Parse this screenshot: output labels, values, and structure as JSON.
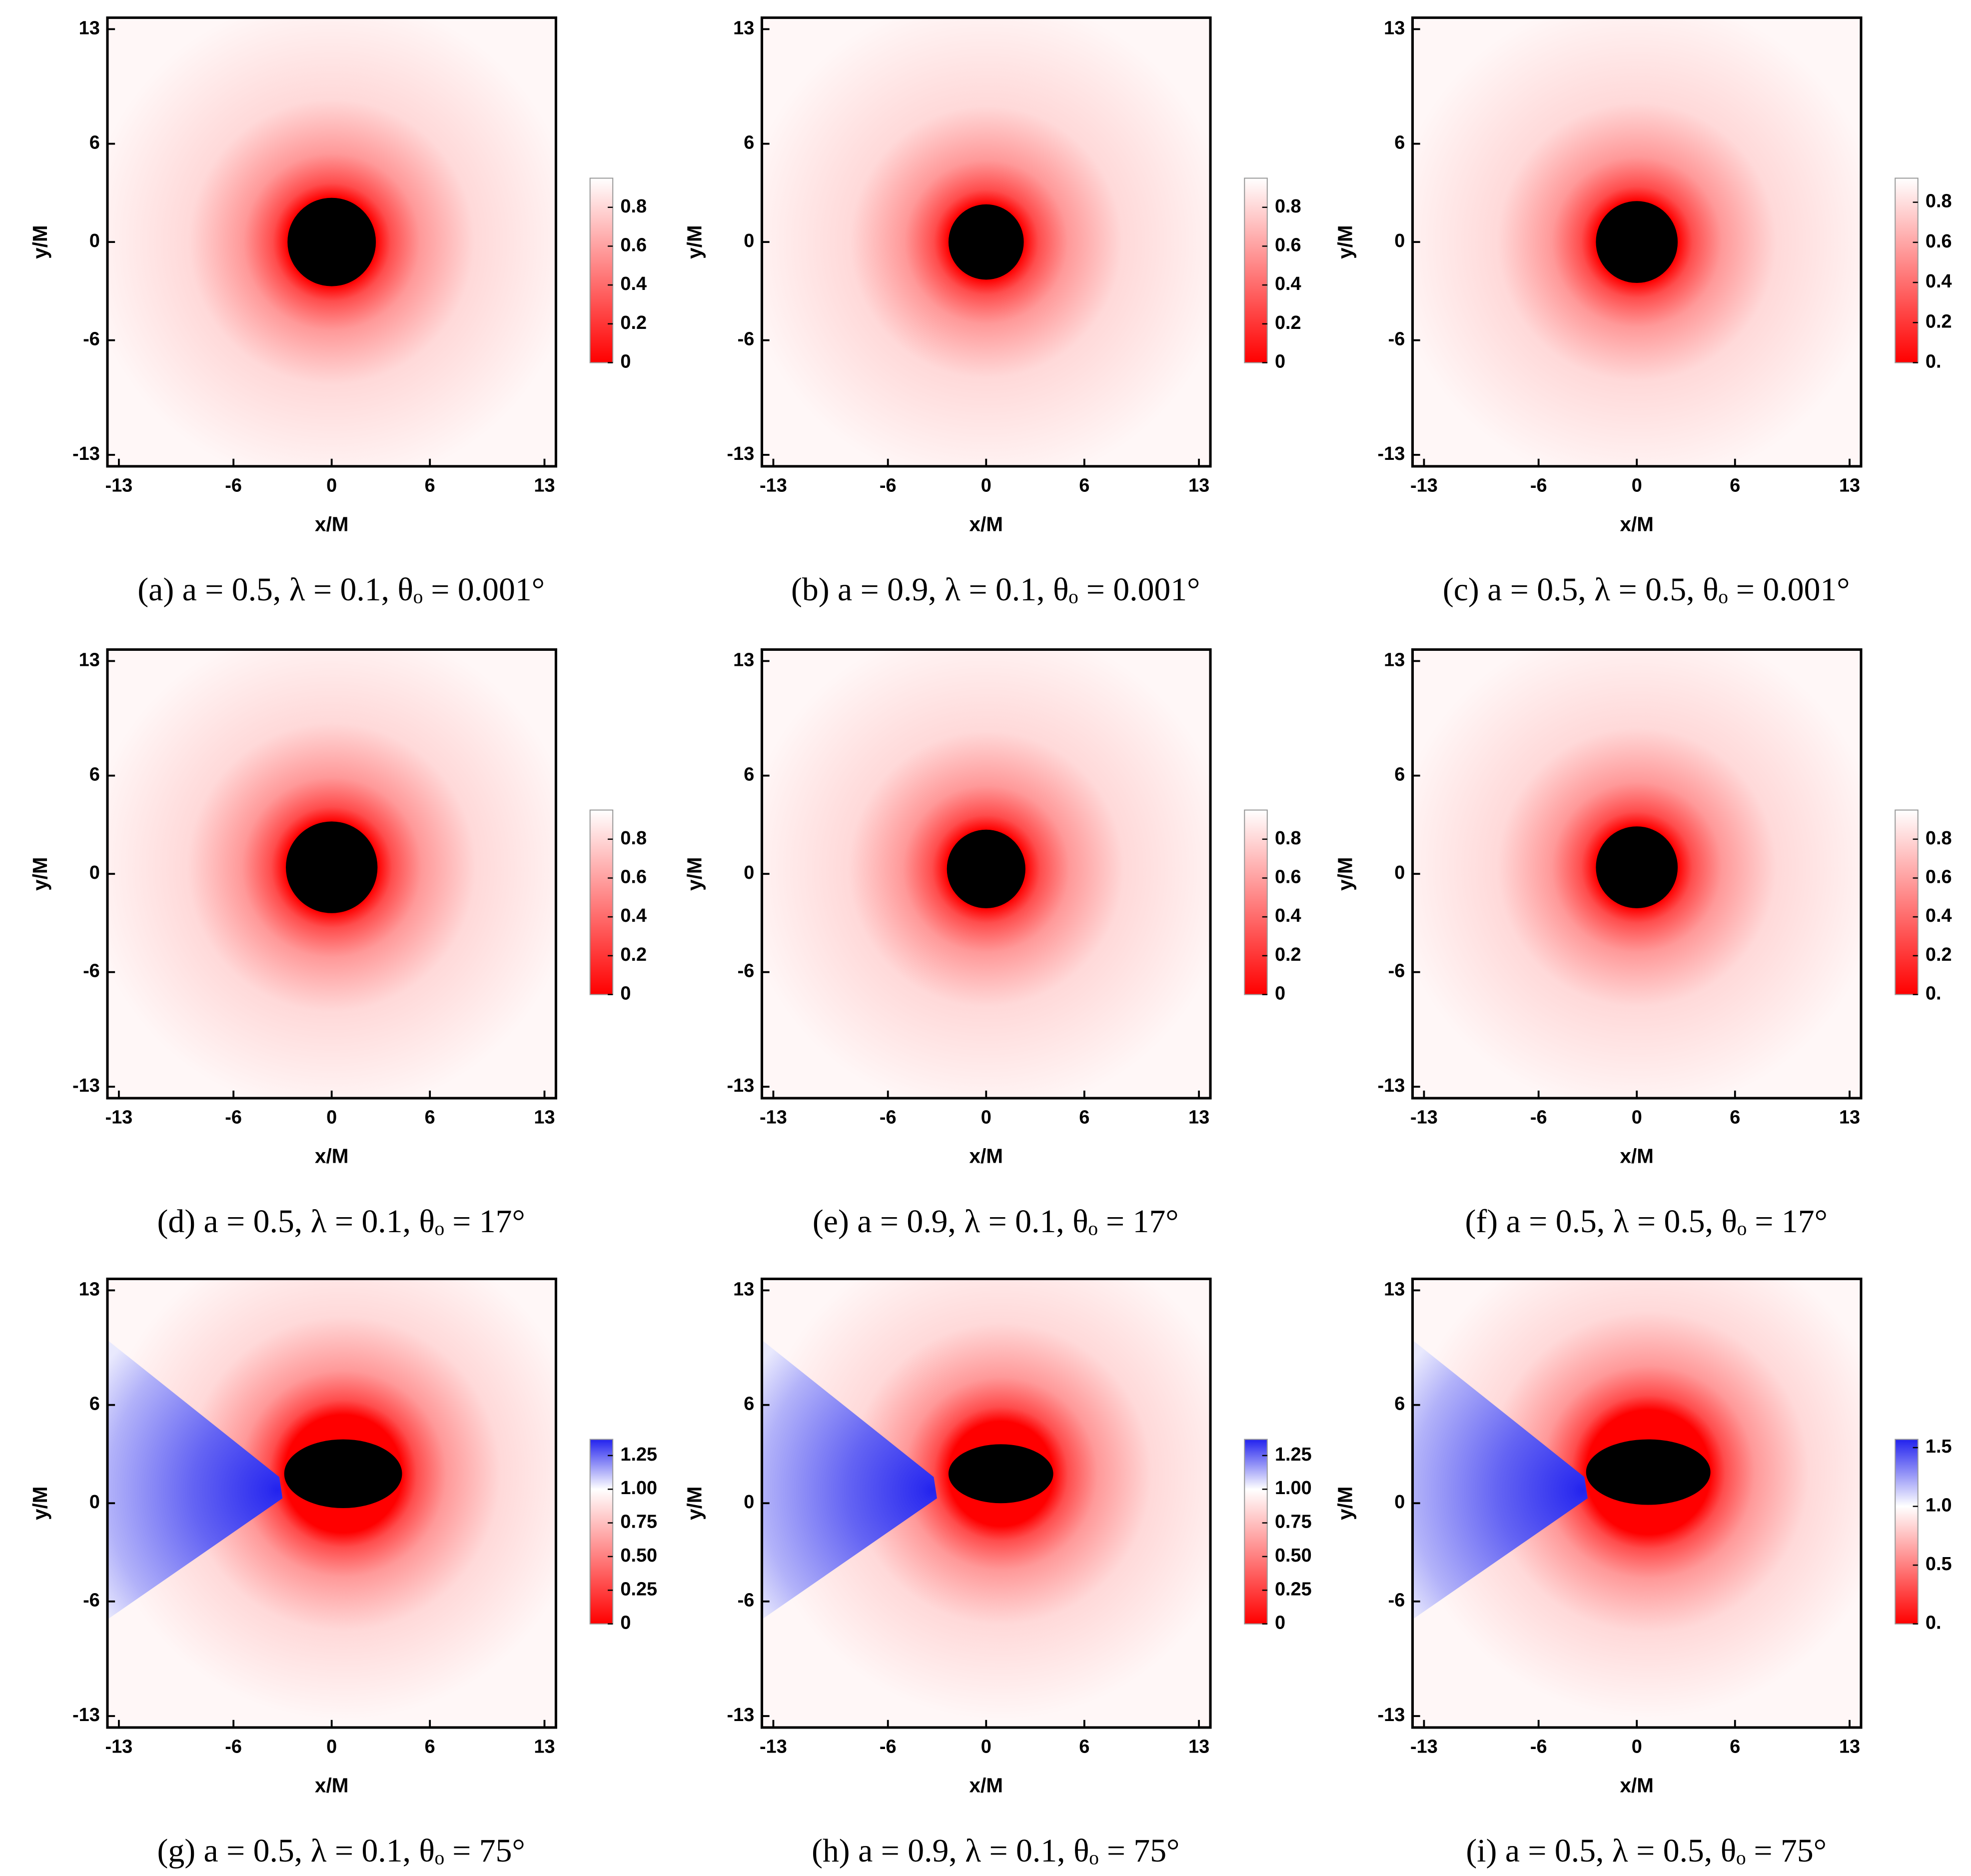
{
  "chart_data": [
    {
      "type": "heatmap",
      "caption": "(a) a = 0.5, λ = 0.1, θₒ = 0.001°",
      "xlabel": "x/M",
      "ylabel": "y/M",
      "xlim": [
        -13.7,
        13.7
      ],
      "ylim": [
        -13.7,
        13.7
      ],
      "xticks": [
        -13,
        -6,
        0,
        6,
        13
      ],
      "yticks": [
        -13,
        -6,
        0,
        6,
        13
      ],
      "colorbar": {
        "lim": [
          0,
          0.95
        ],
        "ticks": [
          0,
          0.2,
          0.4,
          0.6,
          0.8
        ],
        "stops": [
          {
            "value": 0,
            "color": "#ff0000"
          },
          {
            "value": 0.95,
            "color": "#ffffff"
          }
        ]
      }
    },
    {
      "type": "heatmap",
      "caption": "(b) a = 0.9, λ = 0.1, θₒ = 0.001°",
      "xlabel": "x/M",
      "ylabel": "y/M",
      "xlim": [
        -13.7,
        13.7
      ],
      "ylim": [
        -13.7,
        13.7
      ],
      "xticks": [
        -13,
        -6,
        0,
        6,
        13
      ],
      "yticks": [
        -13,
        -6,
        0,
        6,
        13
      ],
      "colorbar": {
        "lim": [
          0,
          0.95
        ],
        "ticks": [
          0,
          0.2,
          0.4,
          0.6,
          0.8
        ],
        "stops": [
          {
            "value": 0,
            "color": "#ff0000"
          },
          {
            "value": 0.95,
            "color": "#ffffff"
          }
        ]
      }
    },
    {
      "type": "heatmap",
      "caption": "(c) a = 0.5, λ = 0.5, θₒ = 0.001°",
      "xlabel": "x/M",
      "ylabel": "y/M",
      "xlim": [
        -13.7,
        13.7
      ],
      "ylim": [
        -13.7,
        13.7
      ],
      "xticks": [
        -13,
        -6,
        0,
        6,
        13
      ],
      "yticks": [
        -13,
        -6,
        0,
        6,
        13
      ],
      "colorbar": {
        "lim": [
          0,
          0.92
        ],
        "ticks": [
          {
            "value": 0,
            "label": "0."
          },
          0.2,
          0.4,
          0.6,
          0.8
        ],
        "stops": [
          {
            "value": 0,
            "color": "#ff0000"
          },
          {
            "value": 0.92,
            "color": "#ffffff"
          }
        ]
      }
    },
    {
      "type": "heatmap",
      "caption": "(d) a = 0.5, λ = 0.1, θₒ = 17°",
      "xlabel": "x/M",
      "ylabel": "y/M",
      "xlim": [
        -13.7,
        13.7
      ],
      "ylim": [
        -13.7,
        13.7
      ],
      "xticks": [
        -13,
        -6,
        0,
        6,
        13
      ],
      "yticks": [
        -13,
        -6,
        0,
        6,
        13
      ],
      "colorbar": {
        "lim": [
          0,
          0.95
        ],
        "ticks": [
          0,
          0.2,
          0.4,
          0.6,
          0.8
        ],
        "stops": [
          {
            "value": 0,
            "color": "#ff0000"
          },
          {
            "value": 0.95,
            "color": "#ffffff"
          }
        ]
      }
    },
    {
      "type": "heatmap",
      "caption": "(e) a = 0.9, λ = 0.1, θₒ = 17°",
      "xlabel": "x/M",
      "ylabel": "y/M",
      "xlim": [
        -13.7,
        13.7
      ],
      "ylim": [
        -13.7,
        13.7
      ],
      "xticks": [
        -13,
        -6,
        0,
        6,
        13
      ],
      "yticks": [
        -13,
        -6,
        0,
        6,
        13
      ],
      "colorbar": {
        "lim": [
          0,
          0.95
        ],
        "ticks": [
          0,
          0.2,
          0.4,
          0.6,
          0.8
        ],
        "stops": [
          {
            "value": 0,
            "color": "#ff0000"
          },
          {
            "value": 0.95,
            "color": "#ffffff"
          }
        ]
      }
    },
    {
      "type": "heatmap",
      "caption": "(f) a = 0.5, λ = 0.5, θₒ = 17°",
      "xlabel": "x/M",
      "ylabel": "y/M",
      "xlim": [
        -13.7,
        13.7
      ],
      "ylim": [
        -13.7,
        13.7
      ],
      "xticks": [
        -13,
        -6,
        0,
        6,
        13
      ],
      "yticks": [
        -13,
        -6,
        0,
        6,
        13
      ],
      "colorbar": {
        "lim": [
          0,
          0.95
        ],
        "ticks": [
          {
            "value": 0,
            "label": "0."
          },
          0.2,
          0.4,
          0.6,
          0.8
        ],
        "stops": [
          {
            "value": 0,
            "color": "#ff0000"
          },
          {
            "value": 0.95,
            "color": "#ffffff"
          }
        ]
      }
    },
    {
      "type": "heatmap",
      "caption": "(g) a = 0.5, λ = 0.1, θₒ = 75°",
      "xlabel": "x/M",
      "ylabel": "y/M",
      "xlim": [
        -13.7,
        13.7
      ],
      "ylim": [
        -13.7,
        13.7
      ],
      "xticks": [
        -13,
        -6,
        0,
        6,
        13
      ],
      "yticks": [
        -13,
        -6,
        0,
        6,
        13
      ],
      "colorbar": {
        "lim": [
          0,
          1.37
        ],
        "ticks": [
          0,
          0.25,
          {
            "value": 0.5,
            "label": "0.50"
          },
          0.75,
          {
            "value": 1,
            "label": "1.00"
          },
          1.25
        ],
        "stops": [
          {
            "value": 0,
            "color": "#ff0000"
          },
          {
            "value": 1,
            "color": "#ffffff"
          },
          {
            "value": 1.37,
            "color": "#2222ee"
          }
        ]
      }
    },
    {
      "type": "heatmap",
      "caption": "(h) a = 0.9, λ = 0.1, θₒ = 75°",
      "xlabel": "x/M",
      "ylabel": "y/M",
      "xlim": [
        -13.7,
        13.7
      ],
      "ylim": [
        -13.7,
        13.7
      ],
      "xticks": [
        -13,
        -6,
        0,
        6,
        13
      ],
      "yticks": [
        -13,
        -6,
        0,
        6,
        13
      ],
      "colorbar": {
        "lim": [
          0,
          1.37
        ],
        "ticks": [
          0,
          0.25,
          {
            "value": 0.5,
            "label": "0.50"
          },
          0.75,
          {
            "value": 1,
            "label": "1.00"
          },
          1.25
        ],
        "stops": [
          {
            "value": 0,
            "color": "#ff0000"
          },
          {
            "value": 1,
            "color": "#ffffff"
          },
          {
            "value": 1.37,
            "color": "#2222ee"
          }
        ]
      }
    },
    {
      "type": "heatmap",
      "caption": "(i) a = 0.5, λ = 0.5, θₒ = 75°",
      "xlabel": "x/M",
      "ylabel": "y/M",
      "xlim": [
        -13.7,
        13.7
      ],
      "ylim": [
        -13.7,
        13.7
      ],
      "xticks": [
        -13,
        -6,
        0,
        6,
        13
      ],
      "yticks": [
        -13,
        -6,
        0,
        6,
        13
      ],
      "colorbar": {
        "lim": [
          0,
          1.57
        ],
        "ticks": [
          {
            "value": 0,
            "label": "0."
          },
          0.5,
          {
            "value": 1,
            "label": "1.0"
          },
          1.5
        ],
        "stops": [
          {
            "value": 0,
            "color": "#ff0000"
          },
          {
            "value": 1,
            "color": "#ffffff"
          },
          {
            "value": 1.57,
            "color": "#2222ee"
          }
        ]
      }
    }
  ]
}
